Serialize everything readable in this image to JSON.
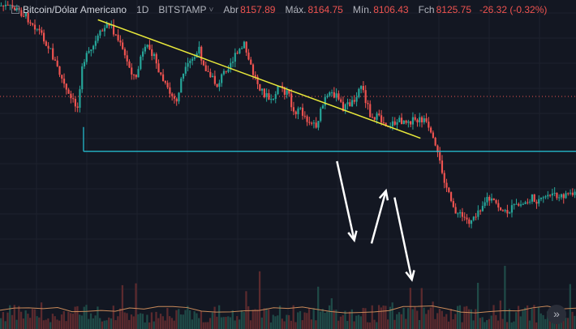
{
  "legend": {
    "symbol": "Bitcoin/Dólar Americano",
    "interval": "1D",
    "exchange": "BITSTAMP",
    "open_label": "Abr",
    "open": "8157.89",
    "high_label": "Máx.",
    "high": "8164.75",
    "low_label": "Mín.",
    "low": "8106.43",
    "close_label": "Fch",
    "close": "8125.75",
    "change": "-26.32 (-0.32%)",
    "chevron_icon": "chevron-down-icon",
    "settings_icon": "gear-icon"
  },
  "colors": {
    "background": "#131722",
    "up": "#26a69a",
    "down": "#ef5350",
    "trendline": "#e8e83a",
    "support": "#26c6da",
    "arrows": "#ffffff"
  },
  "controls": {
    "scroll_icon": "double-chevron-right-icon",
    "scroll_glyph": "»"
  },
  "chart_data": {
    "type": "candlestick",
    "title": "Bitcoin/Dólar Americano",
    "interval": "1D",
    "exchange": "BITSTAMP",
    "grid": true,
    "volume_pane": true,
    "price_path": [
      [
        0,
        0.02
      ],
      [
        6,
        0.03
      ],
      [
        10,
        0.05
      ],
      [
        14,
        0.08
      ],
      [
        18,
        0.12
      ],
      [
        22,
        0.18
      ],
      [
        26,
        0.26
      ],
      [
        30,
        0.34
      ],
      [
        34,
        0.38
      ],
      [
        36,
        0.22
      ],
      [
        40,
        0.18
      ],
      [
        44,
        0.12
      ],
      [
        48,
        0.08
      ],
      [
        52,
        0.14
      ],
      [
        56,
        0.22
      ],
      [
        60,
        0.28
      ],
      [
        62,
        0.2
      ],
      [
        66,
        0.16
      ],
      [
        70,
        0.25
      ],
      [
        74,
        0.32
      ],
      [
        78,
        0.36
      ],
      [
        80,
        0.28
      ],
      [
        84,
        0.22
      ],
      [
        88,
        0.18
      ],
      [
        92,
        0.26
      ],
      [
        96,
        0.3
      ],
      [
        100,
        0.24
      ],
      [
        104,
        0.2
      ],
      [
        108,
        0.16
      ],
      [
        112,
        0.26
      ],
      [
        116,
        0.32
      ],
      [
        120,
        0.36
      ],
      [
        124,
        0.3
      ],
      [
        128,
        0.34
      ],
      [
        130,
        0.4
      ],
      [
        132,
        0.38
      ],
      [
        136,
        0.42
      ],
      [
        140,
        0.44
      ],
      [
        144,
        0.35
      ],
      [
        148,
        0.33
      ],
      [
        152,
        0.38
      ],
      [
        156,
        0.36
      ],
      [
        160,
        0.3
      ],
      [
        164,
        0.4
      ],
      [
        168,
        0.42
      ],
      [
        172,
        0.44
      ],
      [
        176,
        0.43
      ],
      [
        180,
        0.42
      ],
      [
        184,
        0.43
      ],
      [
        188,
        0.42
      ],
      [
        192,
        0.5
      ],
      [
        196,
        0.6
      ],
      [
        200,
        0.72
      ],
      [
        204,
        0.76
      ],
      [
        208,
        0.78
      ],
      [
        212,
        0.74
      ],
      [
        216,
        0.7
      ],
      [
        220,
        0.72
      ],
      [
        224,
        0.75
      ],
      [
        228,
        0.73
      ],
      [
        232,
        0.72
      ],
      [
        236,
        0.7
      ],
      [
        240,
        0.71
      ],
      [
        244,
        0.68
      ],
      [
        248,
        0.7
      ],
      [
        252,
        0.68
      ],
      [
        256,
        0.69
      ]
    ],
    "trendline": [
      [
        0.17,
        0.06
      ],
      [
        0.73,
        0.42
      ]
    ],
    "support_line": [
      [
        0.145,
        0.46
      ],
      [
        1.0,
        0.46
      ]
    ],
    "annotation_arrows": [
      {
        "direction": "down",
        "from": [
          0.585,
          0.49
        ],
        "to": [
          0.615,
          0.73
        ]
      },
      {
        "direction": "up",
        "from": [
          0.645,
          0.74
        ],
        "to": [
          0.67,
          0.58
        ]
      },
      {
        "direction": "down",
        "from": [
          0.685,
          0.6
        ],
        "to": [
          0.715,
          0.85
        ]
      }
    ]
  }
}
